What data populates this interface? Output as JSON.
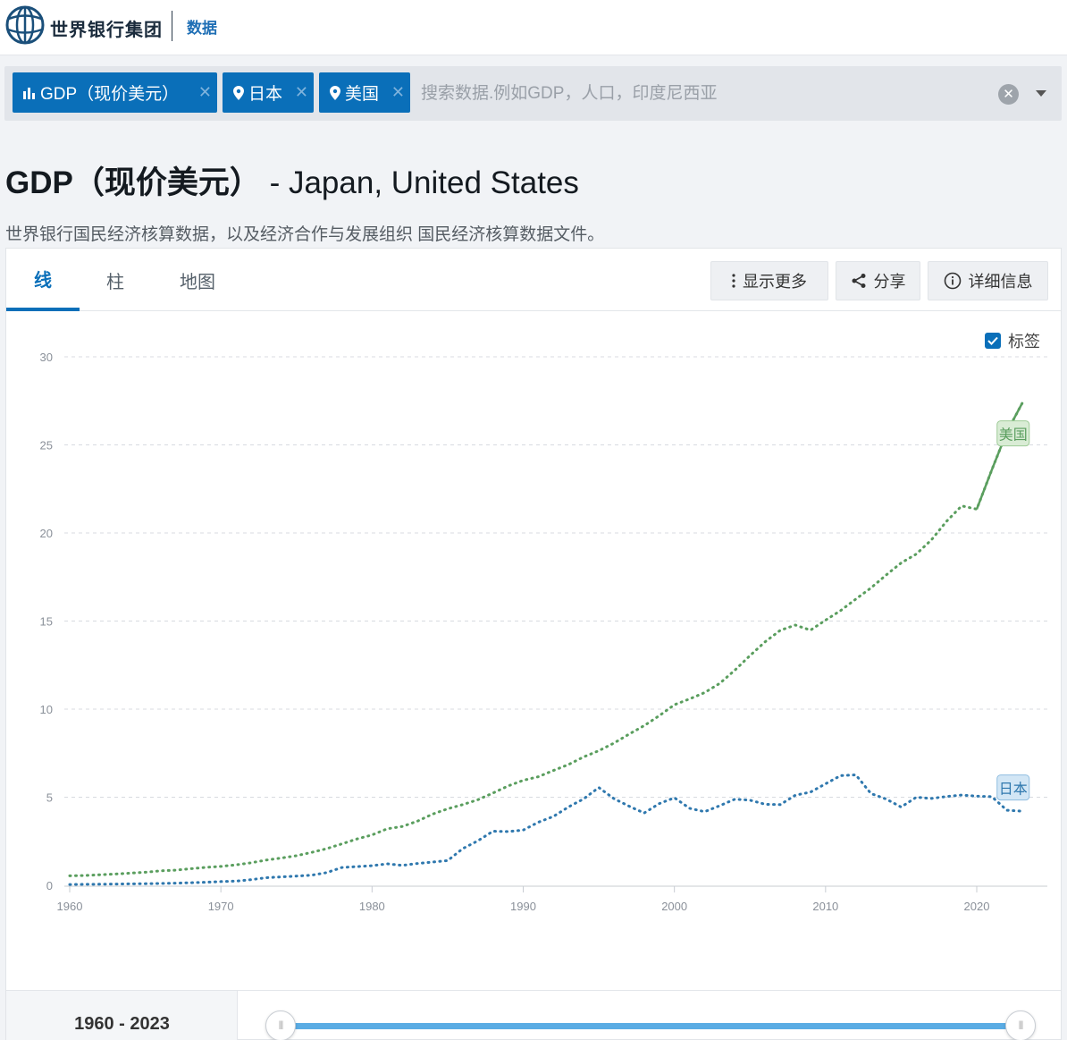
{
  "header": {
    "brand": "世界银行集团",
    "section": "数据"
  },
  "search": {
    "chips": [
      {
        "label": "GDP（现价美元）",
        "icon": "bar-chart-icon"
      },
      {
        "label": "日本",
        "icon": "map-pin-icon"
      },
      {
        "label": "美国",
        "icon": "map-pin-icon"
      }
    ],
    "placeholder": "搜索数据.例如GDP，人口，印度尼西亚"
  },
  "page": {
    "title_main": "GDP（现价美元）",
    "title_countries": " - Japan, United States",
    "source": "世界银行国民经济核算数据，以及经济合作与发展组织 国民经济核算数据文件。"
  },
  "tabs": [
    "线",
    "柱",
    "地图"
  ],
  "toolbar": {
    "more": "显示更多",
    "share": "分享",
    "detail": "详细信息"
  },
  "labels_toggle": {
    "label": "标签",
    "checked": true
  },
  "colors": {
    "accent": "#0a6fb9",
    "us": "#5a9e5e",
    "japan": "#2f78ae"
  },
  "chart_data": {
    "type": "line",
    "title": "",
    "xlabel": "",
    "ylabel": "",
    "x": [
      1960,
      1961,
      1962,
      1963,
      1964,
      1965,
      1966,
      1967,
      1968,
      1969,
      1970,
      1971,
      1972,
      1973,
      1974,
      1975,
      1976,
      1977,
      1978,
      1979,
      1980,
      1981,
      1982,
      1983,
      1984,
      1985,
      1986,
      1987,
      1988,
      1989,
      1990,
      1991,
      1992,
      1993,
      1994,
      1995,
      1996,
      1997,
      1998,
      1999,
      2000,
      2001,
      2002,
      2003,
      2004,
      2005,
      2006,
      2007,
      2008,
      2009,
      2010,
      2011,
      2012,
      2013,
      2014,
      2015,
      2016,
      2017,
      2018,
      2019,
      2020,
      2021,
      2022,
      2023
    ],
    "xticks": [
      "1960",
      "1970",
      "1980",
      "1990",
      "2000",
      "2010",
      "2020"
    ],
    "yticks": [
      "0",
      "5",
      "10",
      "15",
      "20",
      "25",
      "30"
    ],
    "ylim": [
      0,
      30
    ],
    "grid": true,
    "series": [
      {
        "name": "美国",
        "color": "#5a9e5e",
        "values": [
          0.54,
          0.56,
          0.6,
          0.64,
          0.69,
          0.74,
          0.82,
          0.86,
          0.94,
          1.02,
          1.07,
          1.16,
          1.28,
          1.43,
          1.55,
          1.68,
          1.87,
          2.08,
          2.35,
          2.63,
          2.86,
          3.21,
          3.34,
          3.64,
          4.04,
          4.34,
          4.58,
          4.86,
          5.24,
          5.64,
          5.96,
          6.16,
          6.52,
          6.86,
          7.29,
          7.64,
          8.07,
          8.58,
          9.06,
          9.63,
          10.25,
          10.58,
          10.94,
          11.46,
          12.21,
          13.04,
          13.82,
          14.47,
          14.77,
          14.48,
          15.05,
          15.6,
          16.25,
          16.88,
          17.61,
          18.3,
          18.8,
          19.61,
          20.66,
          21.54,
          21.35,
          23.59,
          25.74,
          27.36
        ]
      },
      {
        "name": "日本",
        "color": "#2f78ae",
        "values": [
          0.044,
          0.054,
          0.061,
          0.07,
          0.082,
          0.091,
          0.106,
          0.124,
          0.147,
          0.172,
          0.212,
          0.24,
          0.318,
          0.432,
          0.479,
          0.522,
          0.576,
          0.721,
          1.01,
          1.06,
          1.11,
          1.22,
          1.13,
          1.24,
          1.32,
          1.4,
          2.08,
          2.53,
          3.07,
          3.05,
          3.13,
          3.58,
          3.91,
          4.45,
          4.91,
          5.55,
          4.92,
          4.49,
          4.1,
          4.64,
          4.97,
          4.37,
          4.18,
          4.52,
          4.89,
          4.83,
          4.6,
          4.58,
          5.11,
          5.29,
          5.76,
          6.23,
          6.27,
          5.21,
          4.9,
          4.44,
          5.0,
          4.93,
          5.04,
          5.12,
          5.06,
          5.03,
          4.26,
          4.21
        ]
      }
    ]
  },
  "range": {
    "label": "1960 - 2023",
    "start": 1960,
    "end": 2023
  }
}
